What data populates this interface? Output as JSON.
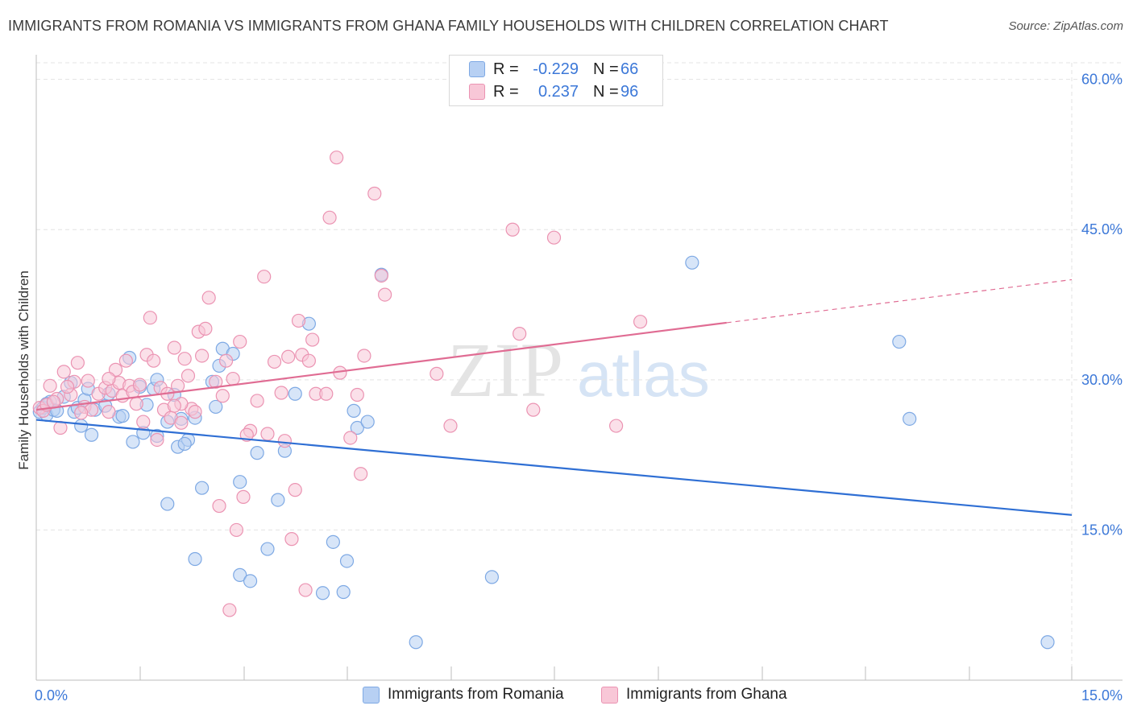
{
  "title": "IMMIGRANTS FROM ROMANIA VS IMMIGRANTS FROM GHANA FAMILY HOUSEHOLDS WITH CHILDREN CORRELATION CHART",
  "source": "Source: ZipAtlas.com",
  "watermark": {
    "zip": "ZIP",
    "atlas": "atlas"
  },
  "legend": {
    "r_label": "R =",
    "n_label": "N =",
    "rows": [
      {
        "r": "-0.229",
        "n": "66",
        "color": "#3c78d8"
      },
      {
        "r": "0.237",
        "n": "96",
        "color": "#e06c93"
      }
    ]
  },
  "chart_data": {
    "type": "scatter",
    "title": "IMMIGRANTS FROM ROMANIA VS IMMIGRANTS FROM GHANA FAMILY HOUSEHOLDS WITH CHILDREN CORRELATION CHART",
    "xlabel": "",
    "ylabel": "Family Households with Children",
    "xlim": [
      0,
      15
    ],
    "ylim": [
      0,
      61.5
    ],
    "x_tick_labels": [
      "0.0%",
      "15.0%"
    ],
    "y_ticks": [
      15,
      30,
      45,
      60
    ],
    "y_tick_labels": [
      "15.0%",
      "30.0%",
      "45.0%",
      "60.0%"
    ],
    "grid": true,
    "series": [
      {
        "name": "Immigrants from Romania",
        "color": "#7ea9e4",
        "fill": "#b7d0f3",
        "trend": {
          "x0": 0,
          "y0": 26.0,
          "x1": 15,
          "y1": 16.5,
          "dashed_to": null
        },
        "points": [
          [
            0.05,
            26.8
          ],
          [
            0.1,
            27.2
          ],
          [
            0.15,
            26.5
          ],
          [
            0.2,
            27.8
          ],
          [
            0.25,
            27.0
          ],
          [
            0.3,
            26.9
          ],
          [
            0.4,
            28.3
          ],
          [
            0.5,
            29.7
          ],
          [
            0.55,
            26.8
          ],
          [
            0.6,
            27.2
          ],
          [
            0.65,
            25.4
          ],
          [
            0.7,
            28.0
          ],
          [
            0.75,
            29.1
          ],
          [
            0.8,
            24.5
          ],
          [
            0.85,
            27.0
          ],
          [
            1.0,
            27.4
          ],
          [
            1.05,
            28.6
          ],
          [
            1.2,
            26.3
          ],
          [
            1.25,
            26.4
          ],
          [
            1.35,
            32.2
          ],
          [
            1.4,
            23.8
          ],
          [
            1.5,
            29.3
          ],
          [
            1.55,
            24.7
          ],
          [
            1.6,
            27.5
          ],
          [
            1.7,
            29.1
          ],
          [
            1.75,
            24.4
          ],
          [
            1.9,
            17.6
          ],
          [
            1.9,
            25.8
          ],
          [
            2.0,
            28.5
          ],
          [
            2.05,
            23.3
          ],
          [
            2.1,
            26.1
          ],
          [
            2.2,
            24.0
          ],
          [
            2.15,
            23.6
          ],
          [
            2.3,
            26.2
          ],
          [
            2.3,
            12.1
          ],
          [
            2.4,
            19.2
          ],
          [
            2.55,
            29.8
          ],
          [
            2.6,
            27.3
          ],
          [
            2.65,
            31.4
          ],
          [
            2.7,
            33.1
          ],
          [
            2.85,
            32.6
          ],
          [
            2.95,
            19.8
          ],
          [
            2.95,
            10.5
          ],
          [
            3.1,
            9.9
          ],
          [
            3.2,
            22.7
          ],
          [
            3.35,
            13.1
          ],
          [
            3.5,
            18.0
          ],
          [
            3.6,
            22.9
          ],
          [
            3.75,
            28.6
          ],
          [
            3.95,
            35.6
          ],
          [
            4.15,
            8.7
          ],
          [
            4.3,
            13.8
          ],
          [
            4.45,
            8.8
          ],
          [
            4.5,
            11.9
          ],
          [
            4.6,
            26.9
          ],
          [
            4.65,
            25.2
          ],
          [
            4.8,
            25.8
          ],
          [
            5.0,
            40.5
          ],
          [
            5.5,
            3.8
          ],
          [
            6.6,
            10.3
          ],
          [
            9.5,
            41.7
          ],
          [
            12.5,
            33.8
          ],
          [
            12.65,
            26.1
          ],
          [
            14.65,
            3.8
          ],
          [
            0.15,
            27.6
          ],
          [
            1.75,
            30.0
          ]
        ]
      },
      {
        "name": "Immigrants from Ghana",
        "color": "#eb93b2",
        "fill": "#f8c7d7",
        "trend": {
          "x0": 0,
          "y0": 27.0,
          "x1": 10.0,
          "y1": 35.7,
          "dashed_to": [
            15,
            40.0
          ]
        },
        "points": [
          [
            0.05,
            27.2
          ],
          [
            0.1,
            26.9
          ],
          [
            0.15,
            27.5
          ],
          [
            0.2,
            29.4
          ],
          [
            0.3,
            28.1
          ],
          [
            0.35,
            25.2
          ],
          [
            0.4,
            30.8
          ],
          [
            0.5,
            28.5
          ],
          [
            0.55,
            29.8
          ],
          [
            0.6,
            31.7
          ],
          [
            0.7,
            27.3
          ],
          [
            0.75,
            29.9
          ],
          [
            0.8,
            27.0
          ],
          [
            0.9,
            28.6
          ],
          [
            1.0,
            29.2
          ],
          [
            1.05,
            26.8
          ],
          [
            1.1,
            28.9
          ],
          [
            1.15,
            31.0
          ],
          [
            1.2,
            29.7
          ],
          [
            1.25,
            28.4
          ],
          [
            1.3,
            31.9
          ],
          [
            1.35,
            29.4
          ],
          [
            1.4,
            28.8
          ],
          [
            1.45,
            27.6
          ],
          [
            1.5,
            29.5
          ],
          [
            1.55,
            25.8
          ],
          [
            1.6,
            32.5
          ],
          [
            1.65,
            36.2
          ],
          [
            1.7,
            31.9
          ],
          [
            1.75,
            24.0
          ],
          [
            1.8,
            29.2
          ],
          [
            1.85,
            27.0
          ],
          [
            1.9,
            28.6
          ],
          [
            1.95,
            26.2
          ],
          [
            2.0,
            33.2
          ],
          [
            2.05,
            29.4
          ],
          [
            2.1,
            25.7
          ],
          [
            2.15,
            32.1
          ],
          [
            2.2,
            30.4
          ],
          [
            2.25,
            27.1
          ],
          [
            2.3,
            26.8
          ],
          [
            2.35,
            34.8
          ],
          [
            2.4,
            32.4
          ],
          [
            2.45,
            35.1
          ],
          [
            2.5,
            38.2
          ],
          [
            2.6,
            29.8
          ],
          [
            2.65,
            17.4
          ],
          [
            2.7,
            28.4
          ],
          [
            2.75,
            31.9
          ],
          [
            2.8,
            7.0
          ],
          [
            2.85,
            30.1
          ],
          [
            2.9,
            15.0
          ],
          [
            2.95,
            33.8
          ],
          [
            3.0,
            18.3
          ],
          [
            3.1,
            24.9
          ],
          [
            3.2,
            27.9
          ],
          [
            3.3,
            40.3
          ],
          [
            3.35,
            24.6
          ],
          [
            3.45,
            31.8
          ],
          [
            3.55,
            28.7
          ],
          [
            3.6,
            23.9
          ],
          [
            3.65,
            32.3
          ],
          [
            3.7,
            14.1
          ],
          [
            3.75,
            19.0
          ],
          [
            3.8,
            35.9
          ],
          [
            3.85,
            32.5
          ],
          [
            3.9,
            9.0
          ],
          [
            3.95,
            31.9
          ],
          [
            4.0,
            34.0
          ],
          [
            4.05,
            28.6
          ],
          [
            4.2,
            28.6
          ],
          [
            4.25,
            46.2
          ],
          [
            4.35,
            52.2
          ],
          [
            4.4,
            30.7
          ],
          [
            4.55,
            24.2
          ],
          [
            4.65,
            28.5
          ],
          [
            4.7,
            20.6
          ],
          [
            4.75,
            32.4
          ],
          [
            4.9,
            48.6
          ],
          [
            5.0,
            40.4
          ],
          [
            5.05,
            38.5
          ],
          [
            5.8,
            30.6
          ],
          [
            6.0,
            25.4
          ],
          [
            6.9,
            45.0
          ],
          [
            7.0,
            34.6
          ],
          [
            7.2,
            27.0
          ],
          [
            7.5,
            44.2
          ],
          [
            8.4,
            25.4
          ],
          [
            8.75,
            35.8
          ],
          [
            0.25,
            27.8
          ],
          [
            0.45,
            29.3
          ],
          [
            0.65,
            26.7
          ],
          [
            1.05,
            30.1
          ],
          [
            2.1,
            27.6
          ],
          [
            3.05,
            24.5
          ],
          [
            2.0,
            27.4
          ]
        ]
      }
    ]
  }
}
